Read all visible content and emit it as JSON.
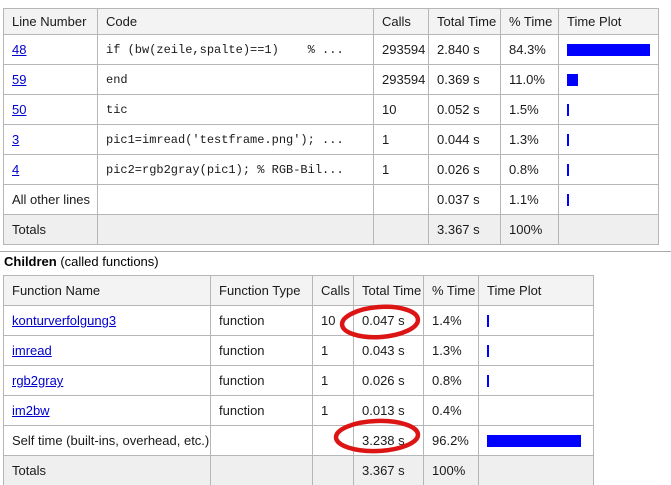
{
  "colors": {
    "bar": "#0000ff",
    "annotation": "#dc1414",
    "link": "#0000cc"
  },
  "table1": {
    "headers": [
      "Line Number",
      "Code",
      "Calls",
      "Total Time",
      "% Time",
      "Time Plot"
    ],
    "rows": [
      {
        "line": "48",
        "code": "if (bw(zeile,spalte)==1)    % ...",
        "calls": "293594",
        "total": "2.840 s",
        "pct_label": "84.3%",
        "pct": 84.3
      },
      {
        "line": "59",
        "code": "end",
        "calls": "293594",
        "total": "0.369 s",
        "pct_label": "11.0%",
        "pct": 11.0
      },
      {
        "line": "50",
        "code": "tic",
        "calls": "10",
        "total": "0.052 s",
        "pct_label": "1.5%",
        "pct": 1.5
      },
      {
        "line": "3",
        "code": "pic1=imread('testframe.png'); ...",
        "calls": "1",
        "total": "0.044 s",
        "pct_label": "1.3%",
        "pct": 1.3
      },
      {
        "line": "4",
        "code": "pic2=rgb2gray(pic1); % RGB-Bil...",
        "calls": "1",
        "total": "0.026 s",
        "pct_label": "0.8%",
        "pct": 0.8
      },
      {
        "line": "All other lines",
        "code": "",
        "calls": "",
        "total": "0.037 s",
        "pct_label": "1.1%",
        "pct": 1.1
      },
      {
        "line": "Totals",
        "code": "",
        "calls": "",
        "total": "3.367 s",
        "pct_label": "100%",
        "pct": 0
      }
    ]
  },
  "section": {
    "title_bold": "Children",
    "title_rest": " (called functions)"
  },
  "table2": {
    "headers": [
      "Function Name",
      "Function Type",
      "Calls",
      "Total Time",
      "% Time",
      "Time Plot"
    ],
    "rows": [
      {
        "name": "konturverfolgung3",
        "type": "function",
        "calls": "10",
        "total": "0.047 s",
        "pct_label": "1.4%",
        "pct": 1.4
      },
      {
        "name": "imread",
        "type": "function",
        "calls": "1",
        "total": "0.043 s",
        "pct_label": "1.3%",
        "pct": 1.3
      },
      {
        "name": "rgb2gray",
        "type": "function",
        "calls": "1",
        "total": "0.026 s",
        "pct_label": "0.8%",
        "pct": 0.8
      },
      {
        "name": "im2bw",
        "type": "function",
        "calls": "1",
        "total": "0.013 s",
        "pct_label": "0.4%",
        "pct": 0.4
      },
      {
        "name": "Self time (built-ins, overhead, etc.)",
        "type": "",
        "calls": "",
        "total": "3.238 s",
        "pct_label": "96.2%",
        "pct": 96.2
      },
      {
        "name": "Totals",
        "type": "",
        "calls": "",
        "total": "3.367 s",
        "pct_label": "100%",
        "pct": 0
      }
    ]
  }
}
